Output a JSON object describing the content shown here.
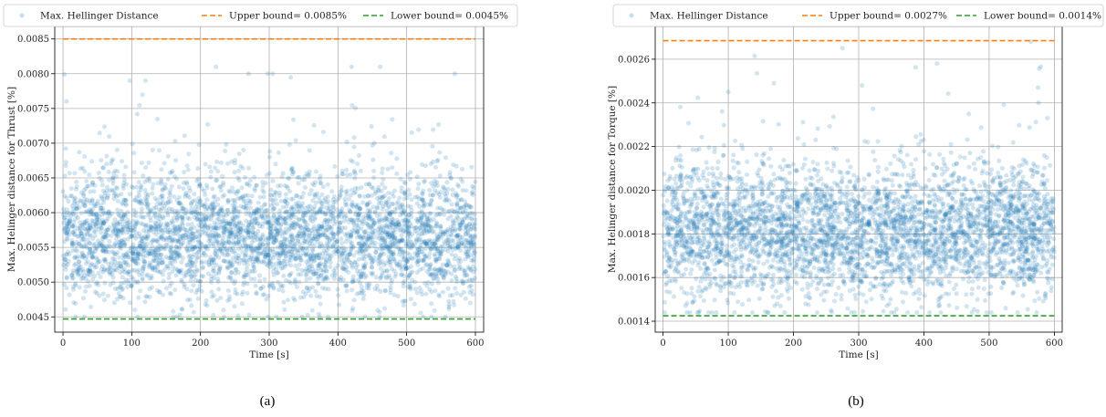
{
  "chart_data": [
    {
      "type": "scatter",
      "caption": "(a)",
      "xlabel": "Time [s]",
      "ylabel": "Max. Helinger distance for Thrust [%]",
      "xlim": [
        -12,
        612
      ],
      "ylim": [
        0.00428,
        0.00868
      ],
      "xticks": [
        0,
        100,
        200,
        300,
        400,
        500,
        600
      ],
      "xtick_labels": [
        "0",
        "100",
        "200",
        "300",
        "400",
        "500",
        "600"
      ],
      "yticks": [
        0.0045,
        0.005,
        0.0055,
        0.006,
        0.0065,
        0.007,
        0.0075,
        0.008,
        0.0085
      ],
      "ytick_labels": [
        "0.0045",
        "0.0050",
        "0.0055",
        "0.0060",
        "0.0065",
        "0.0070",
        "0.0075",
        "0.0080",
        "0.0085"
      ],
      "grid": true,
      "legend_position": "top",
      "scatter_summary": {
        "name": "Max. Hellinger Distance",
        "x_range": [
          0,
          600
        ],
        "approx_count": 4000,
        "center": 0.00565,
        "spread_sd": 0.00045,
        "min": 0.0045,
        "max": 0.0081,
        "notable_outliers": [
          [
            5,
            0.0076
          ],
          [
            97,
            0.0079
          ],
          [
            120,
            0.0079
          ],
          [
            270,
            0.008
          ],
          [
            298,
            0.008
          ],
          [
            305,
            0.008
          ],
          [
            420,
            0.0081
          ],
          [
            570,
            0.008
          ]
        ]
      },
      "series": [
        {
          "name": "Max. Hellinger Distance",
          "kind": "scatter",
          "color": "#1f77b4"
        },
        {
          "name": "Upper bound= 0.0085%",
          "kind": "hline",
          "y": 0.0085,
          "color": "#ff7f0e"
        },
        {
          "name": "Lower bound= 0.0045%",
          "kind": "hline",
          "y": 0.00447,
          "color": "#2ca02c"
        }
      ]
    },
    {
      "type": "scatter",
      "caption": "(b)",
      "xlabel": "Time [s]",
      "ylabel": "Max. Helinger distance for Torque [%]",
      "xlim": [
        -12,
        612
      ],
      "ylim": [
        0.00135,
        0.00275
      ],
      "xticks": [
        0,
        100,
        200,
        300,
        400,
        500,
        600
      ],
      "xtick_labels": [
        "0",
        "100",
        "200",
        "300",
        "400",
        "500",
        "600"
      ],
      "yticks": [
        0.0014,
        0.0016,
        0.0018,
        0.002,
        0.0022,
        0.0024,
        0.0026
      ],
      "ytick_labels": [
        "0.0014",
        "0.0016",
        "0.0018",
        "0.0020",
        "0.0022",
        "0.0024",
        "0.0026"
      ],
      "grid": true,
      "legend_position": "top",
      "scatter_summary": {
        "name": "Max. Hellinger Distance",
        "x_range": [
          0,
          600
        ],
        "approx_count": 4000,
        "center": 0.00181,
        "spread_sd": 0.00015,
        "min": 0.00144,
        "max": 0.00268,
        "notable_outliers": [
          [
            100,
            0.00245
          ],
          [
            170,
            0.00249
          ],
          [
            275,
            0.00265
          ],
          [
            305,
            0.00248
          ],
          [
            420,
            0.00258
          ],
          [
            575,
            0.00247
          ]
        ]
      },
      "series": [
        {
          "name": "Max. Hellinger Distance",
          "kind": "scatter",
          "color": "#1f77b4"
        },
        {
          "name": "Upper bound= 0.0027%",
          "kind": "hline",
          "y": 0.002685,
          "color": "#ff7f0e"
        },
        {
          "name": "Lower bound= 0.0014%",
          "kind": "hline",
          "y": 0.001425,
          "color": "#2ca02c"
        }
      ]
    }
  ]
}
